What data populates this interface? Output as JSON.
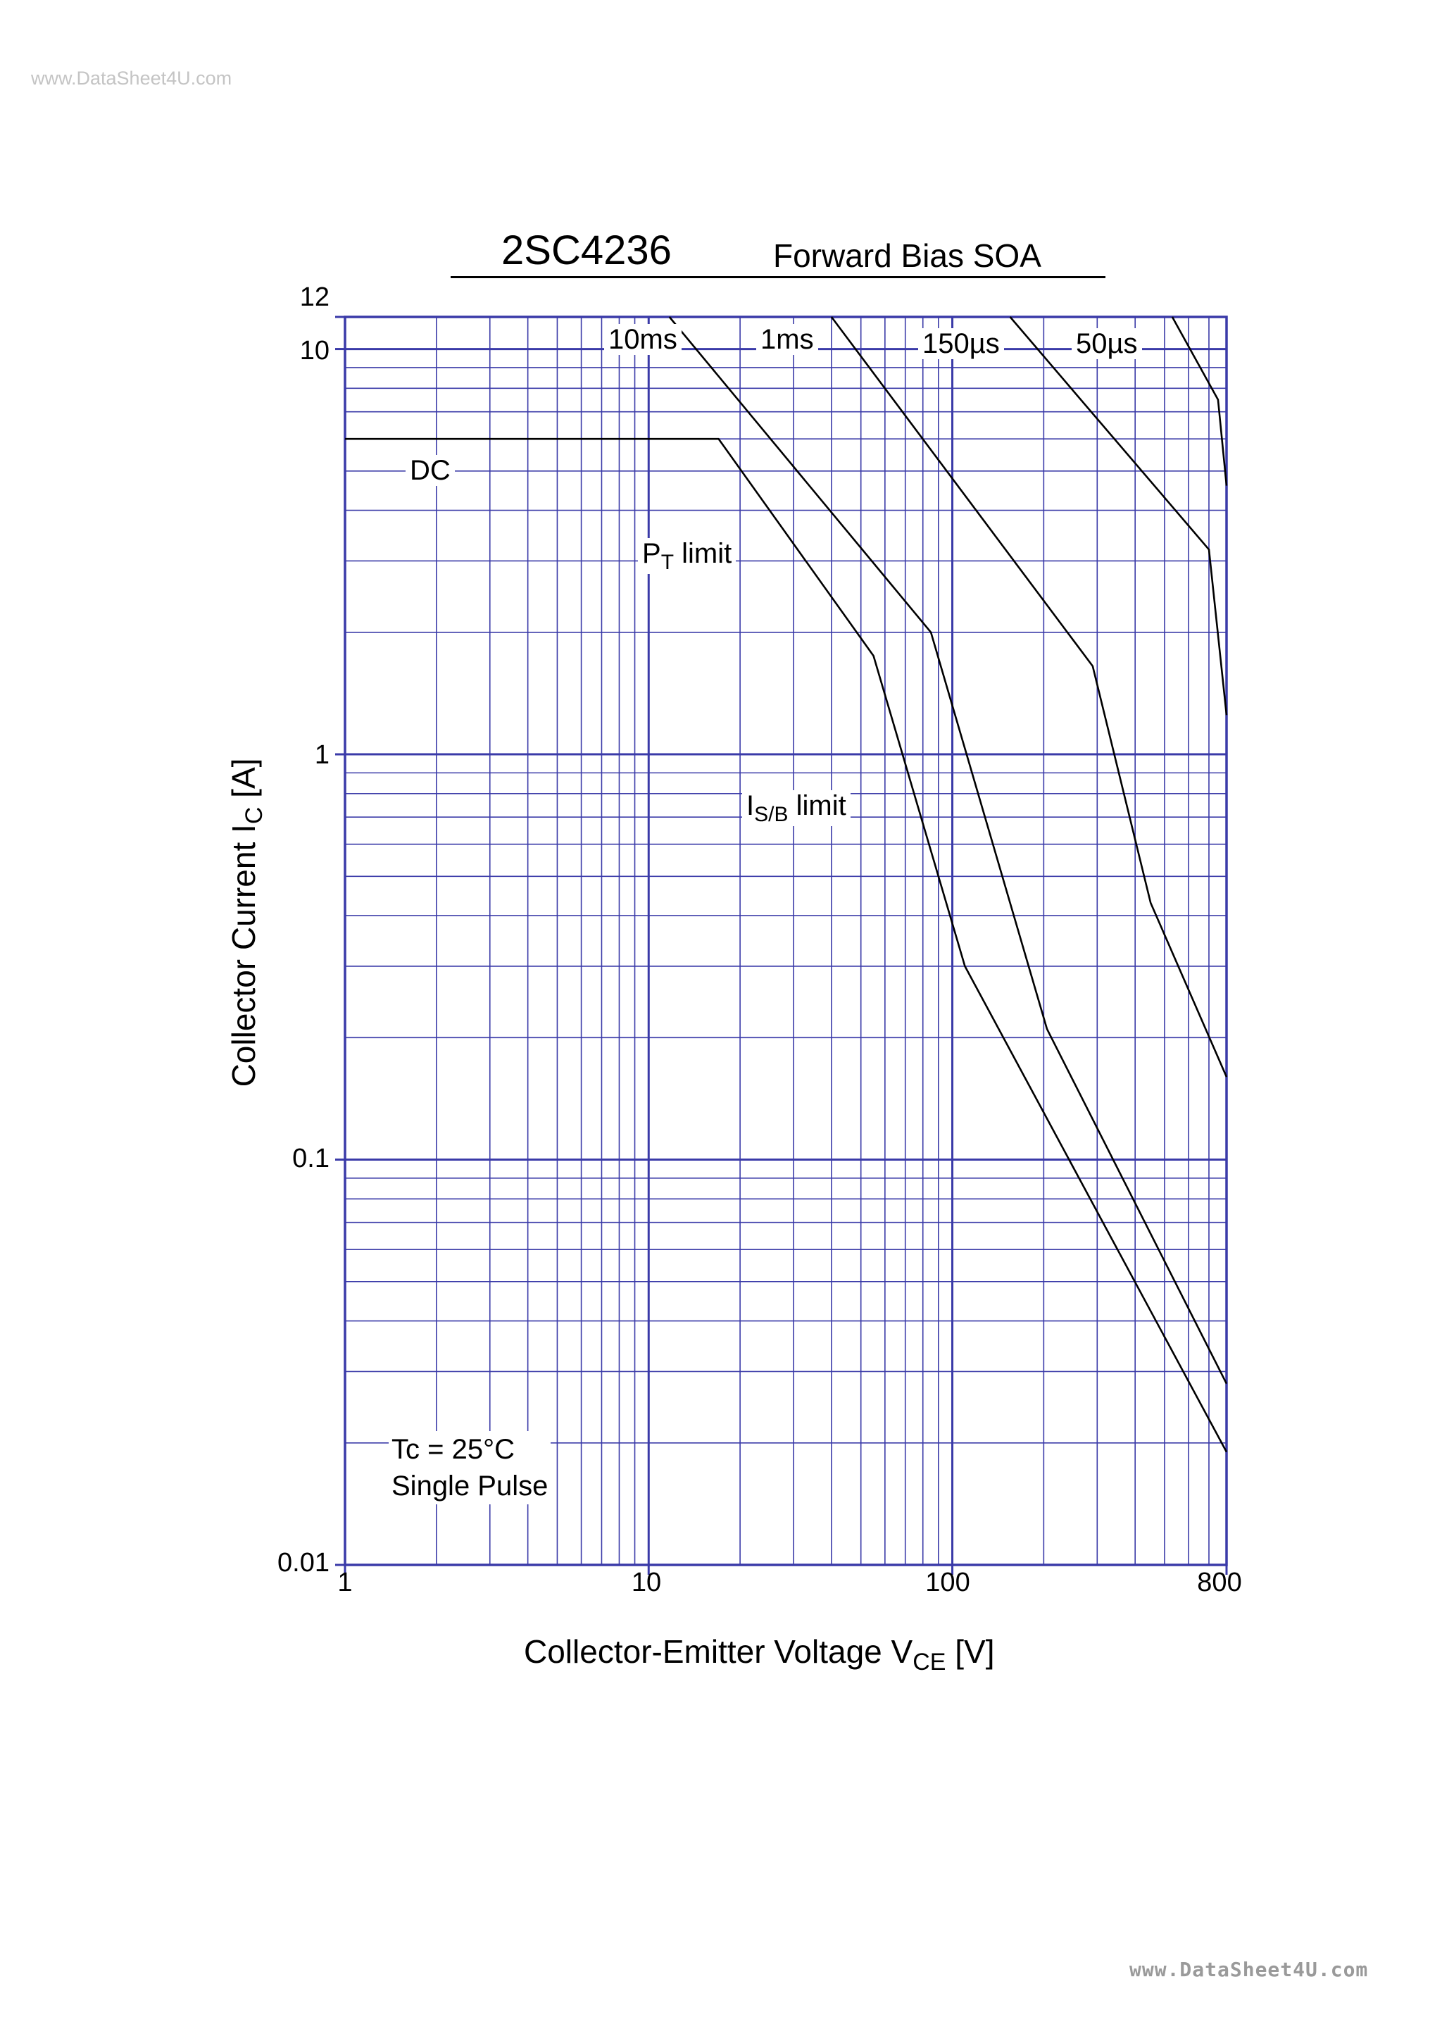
{
  "watermark_top": "www.DataSheet4U.com",
  "watermark_bottom": "www.DataSheet4U.com",
  "title": "2SC4236",
  "subtitle": "Forward Bias SOA",
  "note": {
    "line1": "Tc = 25°C",
    "line2": "Single  Pulse"
  },
  "colors": {
    "grid": "#3a3aa8",
    "curve": "#000000"
  },
  "chart_data": {
    "type": "line",
    "title": "2SC4236",
    "subtitle": "Forward Bias SOA",
    "xlabel": {
      "text": "Collector-Emitter Voltage  V",
      "sub": "CE",
      "suffix": "  [V]"
    },
    "ylabel": {
      "text": "Collector Current  I",
      "sub": "C",
      "suffix": " [A]"
    },
    "xscale": "log",
    "yscale": "log",
    "xlim": [
      1,
      800
    ],
    "ylim": [
      0.01,
      12
    ],
    "grid": true,
    "x_ticks": [
      {
        "v": 1,
        "label": "1"
      },
      {
        "v": 10,
        "label": "10"
      },
      {
        "v": 100,
        "label": "100"
      },
      {
        "v": 800,
        "label": "800"
      }
    ],
    "y_ticks": [
      {
        "v": 0.01,
        "label": "0.01"
      },
      {
        "v": 0.1,
        "label": "0.1"
      },
      {
        "v": 1,
        "label": "1"
      },
      {
        "v": 10,
        "label": "10"
      },
      {
        "v": 12,
        "label": "12"
      }
    ],
    "series": [
      {
        "name": "DC",
        "points": [
          [
            1,
            6
          ],
          [
            17,
            6
          ],
          [
            55,
            1.75
          ],
          [
            110,
            0.3
          ],
          [
            800,
            0.019
          ]
        ]
      },
      {
        "name": "10ms",
        "points": [
          [
            11.7,
            12
          ],
          [
            85,
            2
          ],
          [
            205,
            0.21
          ],
          [
            800,
            0.028
          ]
        ]
      },
      {
        "name": "1ms",
        "points": [
          [
            40,
            12
          ],
          [
            290,
            1.65
          ],
          [
            450,
            0.43
          ],
          [
            800,
            0.16
          ]
        ]
      },
      {
        "name": "150µs",
        "points": [
          [
            155,
            12
          ],
          [
            700,
            3.2
          ],
          [
            800,
            1.25
          ]
        ]
      },
      {
        "name": "50µs",
        "points": [
          [
            530,
            12
          ],
          [
            750,
            7.5
          ],
          [
            800,
            4.6
          ]
        ]
      }
    ],
    "annotations": {
      "dc": "DC",
      "t10ms": "10ms",
      "t1ms": "1ms",
      "t150us": "150µs",
      "t50us": "50µs",
      "pt_main": "P",
      "pt_sub": "T",
      "pt_suffix": " limit",
      "isb_main": "I",
      "isb_sub": "S/B",
      "isb_suffix": "  limit"
    }
  }
}
